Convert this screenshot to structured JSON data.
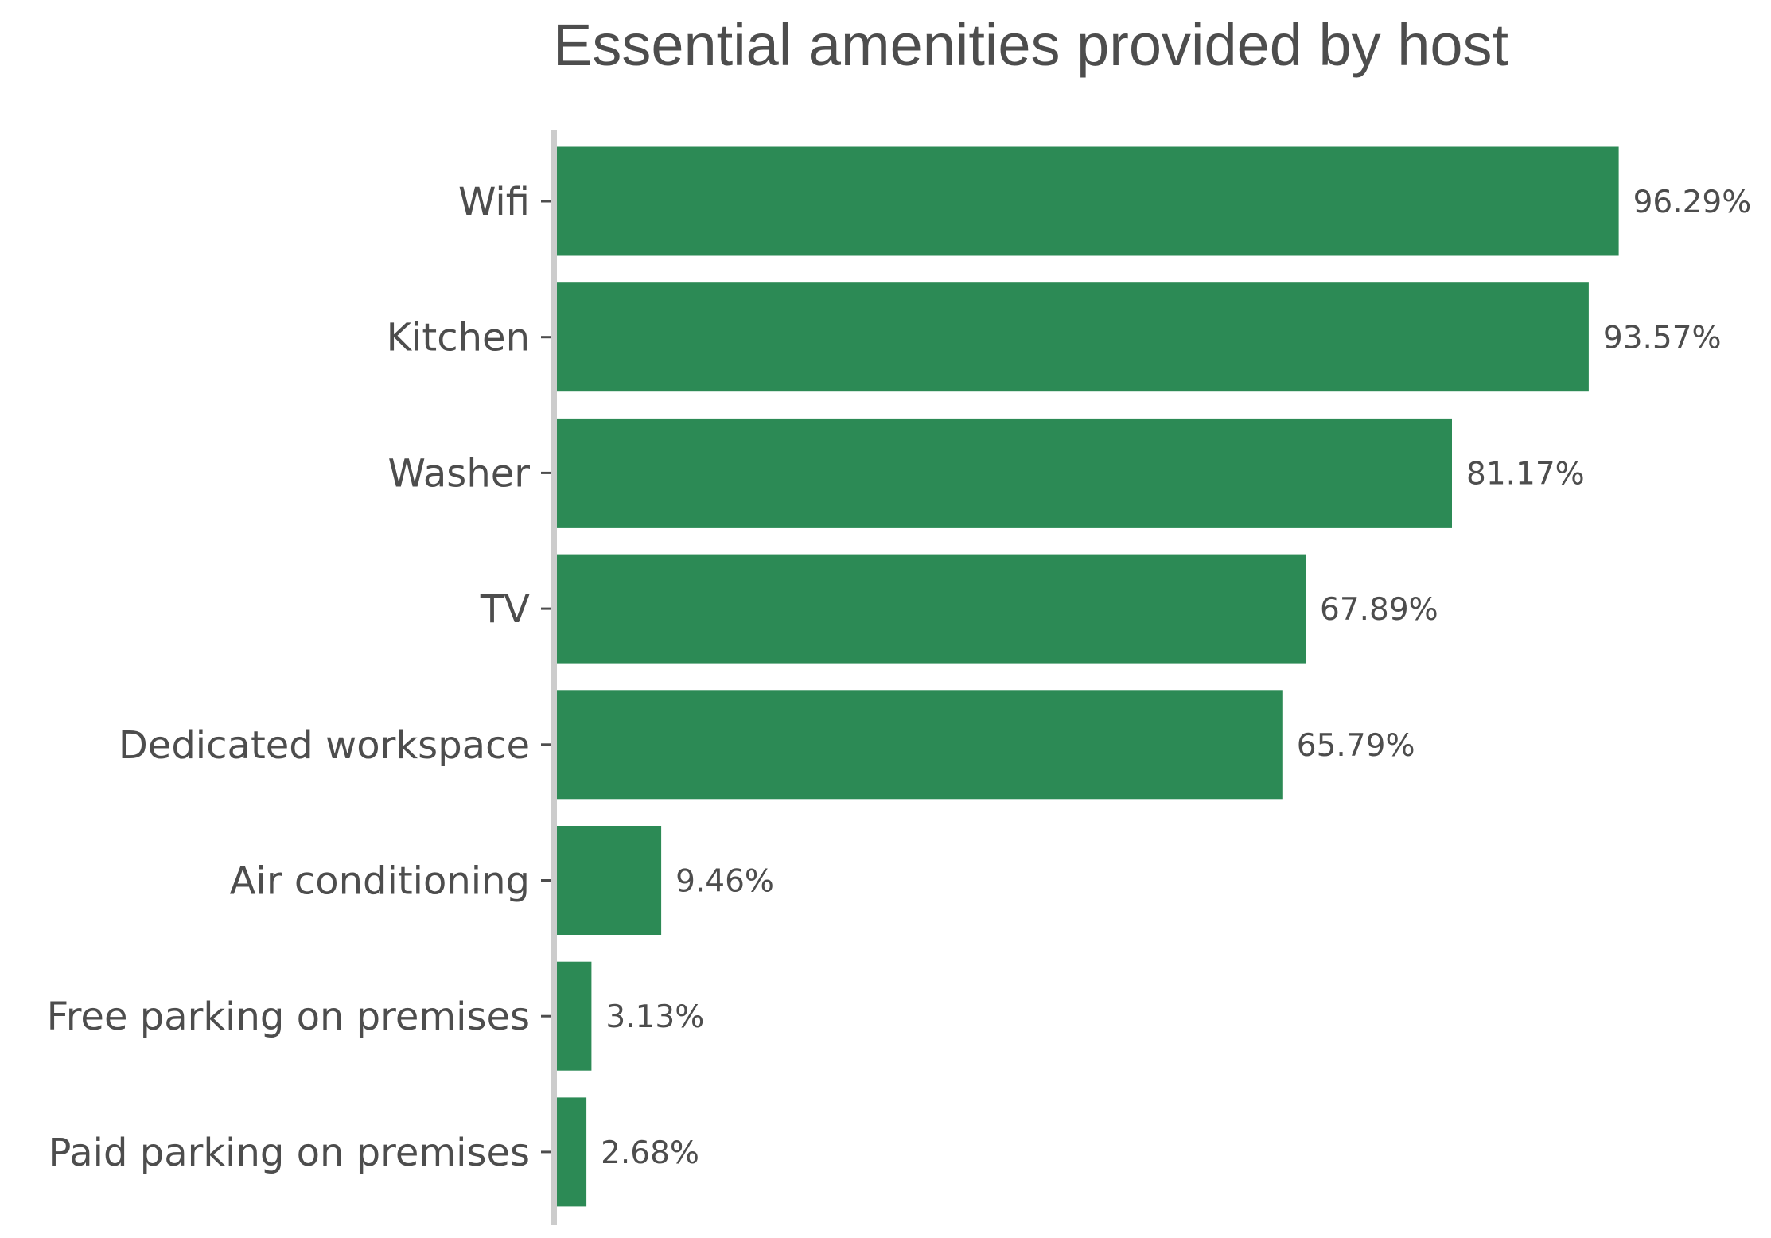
{
  "chart_data": {
    "type": "bar",
    "orientation": "horizontal",
    "title": "Essential amenities provided by host",
    "xlabel": "",
    "ylabel": "",
    "categories": [
      "Wifi",
      "Kitchen",
      "Washer",
      "TV",
      "Dedicated workspace",
      "Air conditioning",
      "Free parking on premises",
      "Paid parking on premises"
    ],
    "values": [
      96.29,
      93.57,
      81.17,
      67.89,
      65.79,
      9.46,
      3.13,
      2.68
    ],
    "data_labels": [
      "96.29%",
      "93.57%",
      "81.17%",
      "67.89%",
      "65.79%",
      "9.46%",
      "3.13%",
      "2.68%"
    ],
    "xlim": [
      0,
      100
    ],
    "grid": false,
    "legend": "none",
    "colors": {
      "bar": "#2c8a55",
      "text": "#4d4d4d",
      "axis": "#cccccc"
    }
  }
}
